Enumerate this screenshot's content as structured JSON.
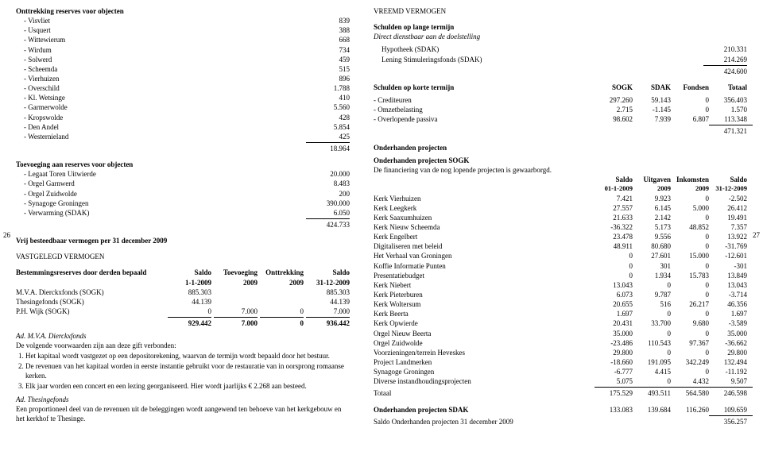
{
  "page": {
    "left_no": "26",
    "right_no": "27"
  },
  "left": {
    "onttrekking_head": "Onttrekking reserves voor objecten",
    "onttrekking": [
      [
        "- Visvliet",
        "839"
      ],
      [
        "- Usquert",
        "388"
      ],
      [
        "- Wittewierum",
        "668"
      ],
      [
        "- Wirdum",
        "734"
      ],
      [
        "- Solwerd",
        "459"
      ],
      [
        "- Scheemda",
        "515"
      ],
      [
        "- Vierhuizen",
        "896"
      ],
      [
        "- Overschild",
        "1.788"
      ],
      [
        "- Kl. Wetsinge",
        "410"
      ],
      [
        "- Garmerwolde",
        "5.560"
      ],
      [
        "- Kropswolde",
        "428"
      ],
      [
        "- Den Andel",
        "5.854"
      ],
      [
        "- Westernieland",
        "425"
      ]
    ],
    "onttrekking_total": "18.964",
    "toevoeging_head": "Toevoeging aan reserves voor objecten",
    "toevoeging": [
      [
        "- Legaat Toren Uitwierde",
        "20.000"
      ],
      [
        "- Orgel Garnwerd",
        "8.483"
      ],
      [
        "- Orgel Zuidwolde",
        "200"
      ],
      [
        "- Synagoge Groningen",
        "390.000"
      ],
      [
        "- Verwarming (SDAK)",
        "6.050"
      ]
    ],
    "toevoeging_total": "424.733",
    "vrij_head": "Vrij besteedbaar vermogen per 31 december 2009",
    "vastgelegd_head": "VASTGELEGD VERMOGEN",
    "bestem_head": "Bestemmingsreserves door derden bepaald",
    "bestem_cols": [
      "Saldo",
      "Toevoeging",
      "Onttrekking",
      "Saldo"
    ],
    "bestem_sub": [
      "1-1-2009",
      "2009",
      "2009",
      "31-12-2009"
    ],
    "bestem_rows": [
      [
        "M.V.A. Dierckxfonds (SOGK)",
        "885.303",
        "",
        "",
        "885.303"
      ],
      [
        "Thesingefonds (SOGK)",
        "44.139",
        "",
        "",
        "44.139"
      ],
      [
        "P.H. Wijk (SOGK)",
        "0",
        "7.000",
        "0",
        "7.000"
      ]
    ],
    "bestem_total": [
      "929.442",
      "7.000",
      "0",
      "936.442"
    ],
    "ad1_head": "Ad. M.V.A. Dierckxfonds",
    "ad1_intro": "De volgende voorwaarden zijn aan deze gift verbonden:",
    "ad1_items": [
      "Het kapitaal wordt vastgezet op een depositorekening, waarvan de termijn wordt bepaald door het bestuur.",
      "De revenuen van het kapitaal worden in eerste instantie gebruikt voor de restauratie van in oorsprong romaanse kerken.",
      "Elk jaar worden een concert en een lezing georganiseerd. Hier wordt jaarlijks € 2.268 aan besteed."
    ],
    "ad2_head": "Ad. Thesingefonds",
    "ad2_text": "Een proportioneel deel van de revenuen uit de beleggingen wordt aangewend ten behoeve van het kerkgebouw en het kerkhof te Thesinge."
  },
  "right": {
    "vreemd_head": "VREEMD VERMOGEN",
    "lange_head": "Schulden op lange termijn",
    "lange_sub": "Direct dienstbaar aan de doelstelling",
    "lange_rows": [
      [
        "Hypotheek (SDAK)",
        "210.331"
      ],
      [
        "Lening Stimuleringsfonds (SDAK)",
        "214.269"
      ]
    ],
    "lange_total": "424.600",
    "korte_head": "Schulden op korte termijn",
    "korte_cols": [
      "SOGK",
      "SDAK",
      "Fondsen",
      "Totaal"
    ],
    "korte_rows": [
      [
        "- Crediteuren",
        "297.260",
        "59.143",
        "0",
        "356.403"
      ],
      [
        "- Omzetbelasting",
        "2.715",
        "-1.145",
        "0",
        "1.570"
      ],
      [
        "- Overlopende passiva",
        "98.602",
        "7.939",
        "6.807",
        "113.348"
      ]
    ],
    "korte_total": "471.321",
    "oh_head": "Onderhanden projecten",
    "oh_sogk_head": "Onderhanden projecten SOGK",
    "oh_sogk_sub": "De financiering van de nog lopende projecten is gewaarborgd.",
    "oh_cols": [
      "Saldo",
      "Uitgaven",
      "Inkomsten",
      "Saldo"
    ],
    "oh_sub": [
      "01-1-2009",
      "2009",
      "2009",
      "31-12-2009"
    ],
    "oh_rows": [
      [
        "Kerk Vierhuizen",
        "7.421",
        "9.923",
        "0",
        "-2.502"
      ],
      [
        "Kerk Leegkerk",
        "27.557",
        "6.145",
        "5.000",
        "26.412"
      ],
      [
        "Kerk Saaxumhuizen",
        "21.633",
        "2.142",
        "0",
        "19.491"
      ],
      [
        "Kerk Nieuw Scheemda",
        "-36.322",
        "5.173",
        "48.852",
        "7.357"
      ],
      [
        "Kerk Engelbert",
        "23.478",
        "9.556",
        "0",
        "13.922"
      ],
      [
        "Digitaliseren met beleid",
        "48.911",
        "80.680",
        "0",
        "-31.769"
      ],
      [
        "Het Verhaal van Groningen",
        "0",
        "27.601",
        "15.000",
        "-12.601"
      ],
      [
        "Koffie Informatie Punten",
        "0",
        "301",
        "0",
        "-301"
      ],
      [
        "Presentatiebudget",
        "0",
        "1.934",
        "15.783",
        "13.849"
      ],
      [
        "Kerk Niebert",
        "13.043",
        "0",
        "0",
        "13.043"
      ],
      [
        "Kerk Pieterburen",
        "6.073",
        "9.787",
        "0",
        "-3.714"
      ],
      [
        "Kerk Woltersum",
        "20.655",
        "516",
        "26.217",
        "46.356"
      ],
      [
        "Kerk Beerta",
        "1.697",
        "0",
        "0",
        "1.697"
      ],
      [
        "Kerk Opwierde",
        "20.431",
        "33.700",
        "9.680",
        "-3.589"
      ],
      [
        "Orgel Nieuw Beerta",
        "35.000",
        "0",
        "0",
        "35.000"
      ],
      [
        "Orgel Zuidwolde",
        "-23.486",
        "110.543",
        "97.367",
        "-36.662"
      ],
      [
        "Voorzieningen/terrein Heveskes",
        "29.800",
        "0",
        "0",
        "29.800"
      ],
      [
        "Project Landmerken",
        "-18.660",
        "191.095",
        "342.249",
        "132.494"
      ],
      [
        "Synagoge Groningen",
        "-6.777",
        "4.415",
        "0",
        "-11.192"
      ],
      [
        "Diverse instandhoudingsprojecten",
        "5.075",
        "0",
        "4.432",
        "9.507"
      ]
    ],
    "oh_total_label": "Totaal",
    "oh_total": [
      "175.529",
      "493.511",
      "564.580",
      "246.598"
    ],
    "sdak_label": "Onderhanden projecten SDAK",
    "sdak_row": [
      "133.083",
      "139.684",
      "116.260",
      "109.659"
    ],
    "saldo_label": "Saldo Onderhanden projecten 31 december 2009",
    "saldo_total": "356.257"
  }
}
